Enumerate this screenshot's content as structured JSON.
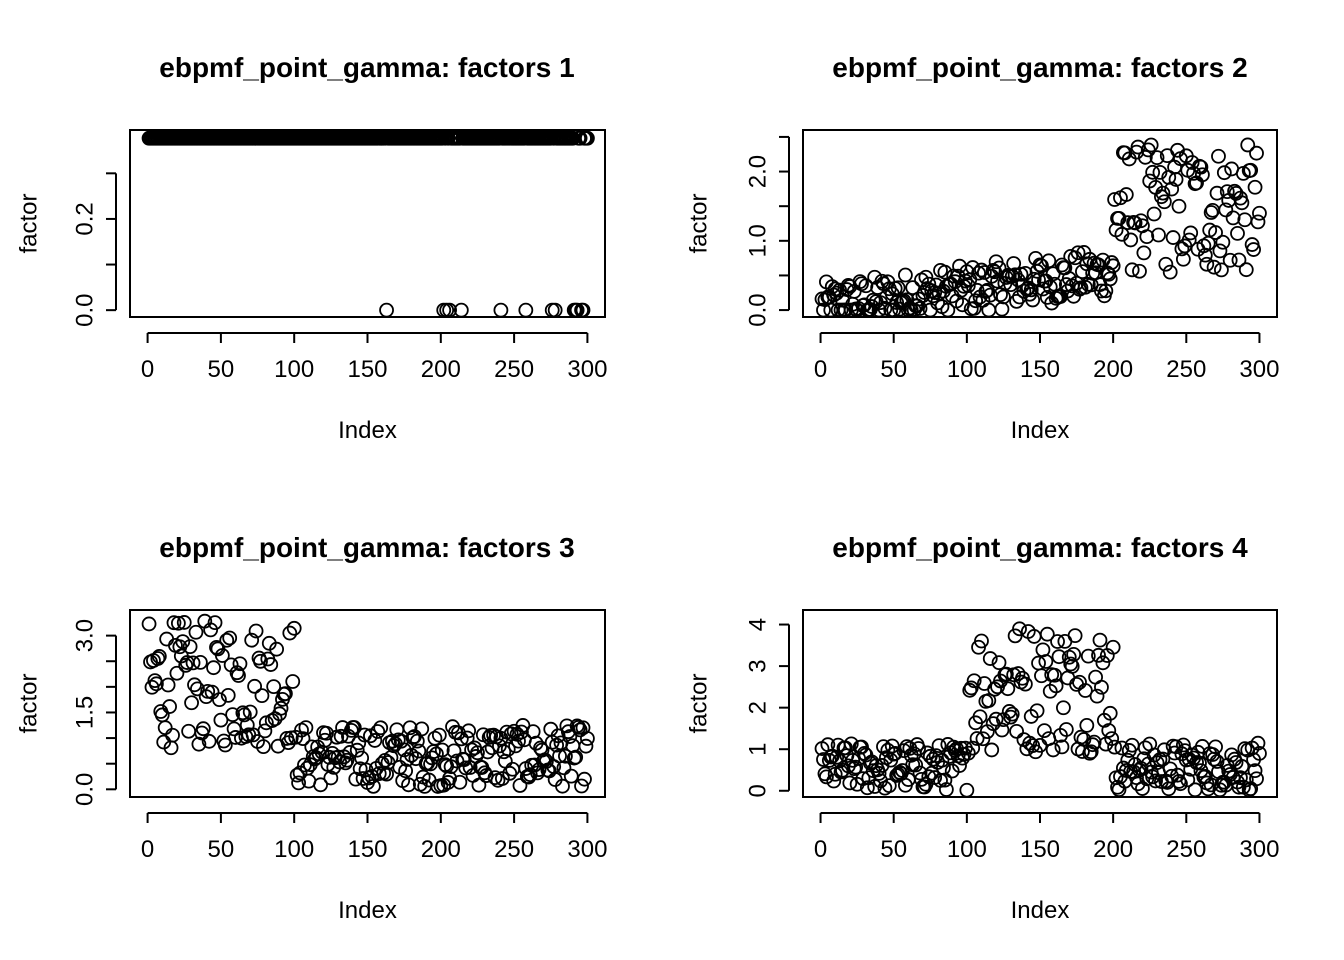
{
  "chart_data": [
    {
      "type": "scatter",
      "title": "ebpmf_point_gamma: factors 1",
      "xlabel": "Index",
      "ylabel": "factor",
      "xlim": [
        -12,
        312
      ],
      "ylim": [
        -0.015,
        0.395
      ],
      "xticks": [
        0,
        50,
        100,
        150,
        200,
        250,
        300
      ],
      "yticks": [
        0.0,
        0.1,
        0.2,
        0.3
      ],
      "ytick_labels": [
        "0.0",
        "",
        "0.2",
        ""
      ],
      "gen": "f1",
      "points": []
    },
    {
      "type": "scatter",
      "title": "ebpmf_point_gamma: factors 2",
      "xlabel": "Index",
      "ylabel": "factor",
      "xlim": [
        -12,
        312
      ],
      "ylim": [
        -0.1,
        2.6
      ],
      "xticks": [
        0,
        50,
        100,
        150,
        200,
        250,
        300
      ],
      "yticks": [
        0.0,
        0.5,
        1.0,
        1.5,
        2.0,
        2.5
      ],
      "ytick_labels": [
        "0.0",
        "",
        "1.0",
        "",
        "2.0",
        ""
      ],
      "gen": "f2",
      "points": []
    },
    {
      "type": "scatter",
      "title": "ebpmf_point_gamma: factors 3",
      "xlabel": "Index",
      "ylabel": "factor",
      "xlim": [
        -12,
        312
      ],
      "ylim": [
        -0.15,
        3.5
      ],
      "xticks": [
        0,
        50,
        100,
        150,
        200,
        250,
        300
      ],
      "yticks": [
        0.0,
        0.5,
        1.0,
        1.5,
        2.0,
        2.5,
        3.0
      ],
      "ytick_labels": [
        "0.0",
        "",
        "",
        "1.5",
        "",
        "",
        "3.0"
      ],
      "gen": "f3",
      "points": []
    },
    {
      "type": "scatter",
      "title": "ebpmf_point_gamma: factors 4",
      "xlabel": "Index",
      "ylabel": "factor",
      "xlim": [
        -12,
        312
      ],
      "ylim": [
        -0.15,
        4.35
      ],
      "xticks": [
        0,
        50,
        100,
        150,
        200,
        250,
        300
      ],
      "yticks": [
        0,
        1,
        2,
        3,
        4
      ],
      "ytick_labels": [
        "0",
        "1",
        "2",
        "3",
        "4"
      ],
      "gen": "f4",
      "points": []
    }
  ]
}
